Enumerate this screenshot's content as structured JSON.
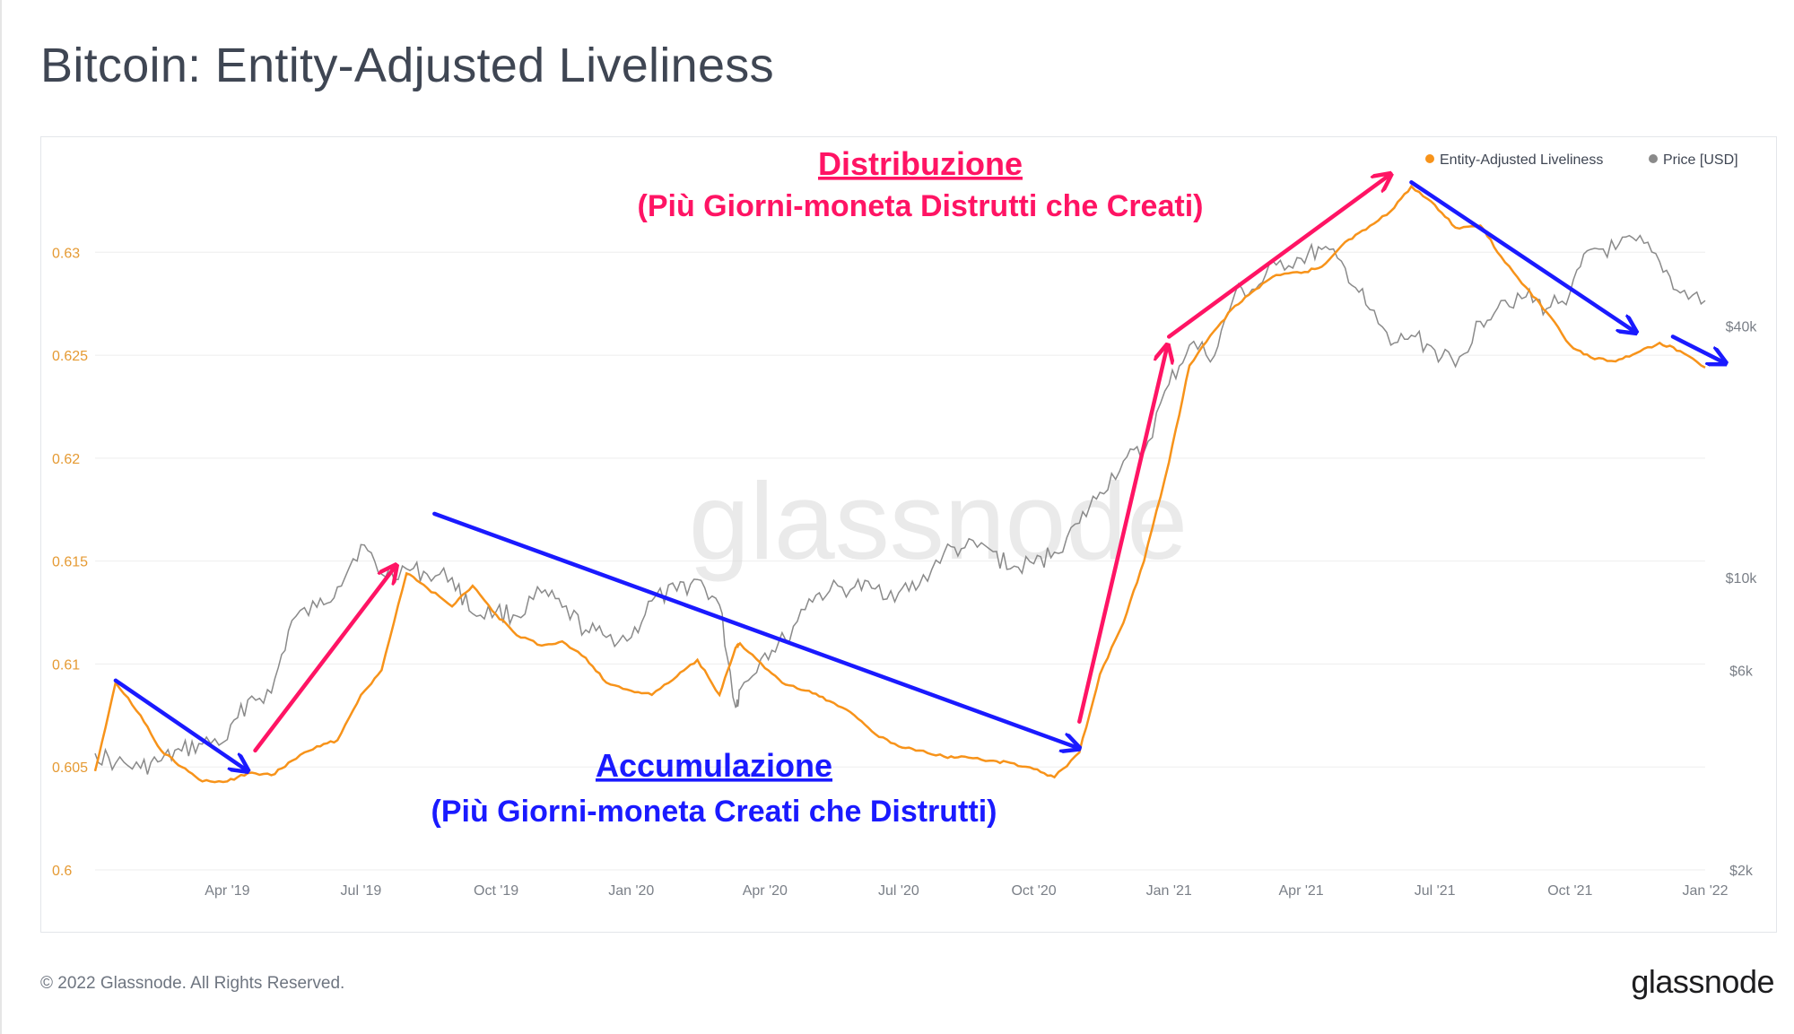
{
  "title": "Bitcoin: Entity-Adjusted Liveliness",
  "footer": "© 2022 Glassnode. All Rights Reserved.",
  "brand": "glassnode",
  "watermark": "glassnode",
  "colors": {
    "liveliness": "#f7931a",
    "price": "#8a8a8a",
    "accumulation": "#1a1aff",
    "distribution": "#ff1464",
    "axis_text": "#7a7f87",
    "left_axis_text": "#e59a33",
    "grid": "#eeeeee"
  },
  "chart_data": {
    "type": "line",
    "title": "Bitcoin: Entity-Adjusted Liveliness",
    "x": [
      "2019-01-01",
      "2019-01-15",
      "2019-02-01",
      "2019-02-15",
      "2019-03-01",
      "2019-03-15",
      "2019-04-01",
      "2019-04-15",
      "2019-05-01",
      "2019-05-15",
      "2019-06-01",
      "2019-06-15",
      "2019-07-01",
      "2019-07-15",
      "2019-08-01",
      "2019-08-15",
      "2019-09-01",
      "2019-09-15",
      "2019-10-01",
      "2019-10-15",
      "2019-11-01",
      "2019-11-15",
      "2019-12-01",
      "2019-12-15",
      "2020-01-01",
      "2020-01-15",
      "2020-02-01",
      "2020-02-15",
      "2020-03-01",
      "2020-03-12",
      "2020-03-15",
      "2020-04-01",
      "2020-04-15",
      "2020-05-01",
      "2020-05-15",
      "2020-06-01",
      "2020-06-15",
      "2020-07-01",
      "2020-07-15",
      "2020-08-01",
      "2020-08-15",
      "2020-09-01",
      "2020-09-15",
      "2020-10-01",
      "2020-10-15",
      "2020-11-01",
      "2020-11-15",
      "2020-12-01",
      "2020-12-15",
      "2021-01-01",
      "2021-01-15",
      "2021-02-01",
      "2021-02-15",
      "2021-03-01",
      "2021-03-15",
      "2021-04-01",
      "2021-04-15",
      "2021-05-01",
      "2021-05-15",
      "2021-06-01",
      "2021-06-15",
      "2021-07-01",
      "2021-07-15",
      "2021-08-01",
      "2021-08-15",
      "2021-09-01",
      "2021-09-15",
      "2021-10-01",
      "2021-10-15",
      "2021-11-01",
      "2021-11-15",
      "2021-12-01",
      "2021-12-15",
      "2022-01-01"
    ],
    "series": [
      {
        "name": "Entity-Adjusted Liveliness",
        "axis": "left",
        "color": "#f7931a",
        "values": [
          0.6048,
          0.6091,
          0.6075,
          0.6058,
          0.605,
          0.6043,
          0.6043,
          0.6047,
          0.6046,
          0.6053,
          0.606,
          0.6063,
          0.6085,
          0.6097,
          0.6144,
          0.6137,
          0.6128,
          0.6138,
          0.6124,
          0.6114,
          0.6109,
          0.6111,
          0.6103,
          0.6091,
          0.6087,
          0.6085,
          0.6094,
          0.6102,
          0.6085,
          0.6108,
          0.611,
          0.6098,
          0.609,
          0.6087,
          0.6082,
          0.6075,
          0.6066,
          0.606,
          0.6058,
          0.6055,
          0.6055,
          0.6053,
          0.6052,
          0.6049,
          0.6045,
          0.6057,
          0.6095,
          0.612,
          0.615,
          0.6198,
          0.6245,
          0.6262,
          0.6274,
          0.6282,
          0.6289,
          0.629,
          0.6293,
          0.6305,
          0.6311,
          0.632,
          0.6332,
          0.6323,
          0.6312,
          0.6313,
          0.6298,
          0.6283,
          0.6271,
          0.6255,
          0.6249,
          0.6247,
          0.6251,
          0.6256,
          0.6252,
          0.6244
        ]
      },
      {
        "name": "Price [USD]",
        "axis": "right",
        "color": "#8a8a8a",
        "values": [
          3800,
          3600,
          3500,
          3650,
          3850,
          4000,
          4100,
          5100,
          5300,
          7900,
          8500,
          9500,
          12000,
          10200,
          10500,
          10200,
          10000,
          8200,
          8300,
          8100,
          9200,
          8500,
          7500,
          7200,
          7200,
          8800,
          9300,
          9900,
          8600,
          4900,
          5400,
          6600,
          7100,
          8900,
          9300,
          9500,
          9400,
          9200,
          9600,
          11500,
          11800,
          11700,
          10500,
          10800,
          11500,
          13500,
          16000,
          19000,
          20000,
          29000,
          36000,
          34000,
          48000,
          49000,
          56000,
          58000,
          61000,
          55000,
          45000,
          36000,
          38000,
          35000,
          32000,
          41000,
          46000,
          47000,
          44000,
          48000,
          61000,
          61000,
          64000,
          57000,
          48000,
          46000
        ]
      }
    ],
    "y_left": {
      "ticks": [
        0.6,
        0.605,
        0.61,
        0.615,
        0.62,
        0.625,
        0.63
      ],
      "tick_labels": [
        "0.6",
        "0.605",
        "0.61",
        "0.615",
        "0.62",
        "0.625",
        "0.63"
      ],
      "range": [
        0.6,
        0.6345
      ]
    },
    "y_right": {
      "scale": "log",
      "ticks": [
        2000,
        6000,
        10000,
        40000
      ],
      "tick_labels": [
        "$2k",
        "$6k",
        "$10k",
        "$40k"
      ]
    },
    "x_ticks": [
      {
        "date": "2019-04-01",
        "label": "Apr '19"
      },
      {
        "date": "2019-07-01",
        "label": "Jul '19"
      },
      {
        "date": "2019-10-01",
        "label": "Oct '19"
      },
      {
        "date": "2020-01-01",
        "label": "Jan '20"
      },
      {
        "date": "2020-04-01",
        "label": "Apr '20"
      },
      {
        "date": "2020-07-01",
        "label": "Jul '20"
      },
      {
        "date": "2020-10-01",
        "label": "Oct '20"
      },
      {
        "date": "2021-01-01",
        "label": "Jan '21"
      },
      {
        "date": "2021-04-01",
        "label": "Apr '21"
      },
      {
        "date": "2021-07-01",
        "label": "Jul '21"
      },
      {
        "date": "2021-10-01",
        "label": "Oct '21"
      },
      {
        "date": "2022-01-01",
        "label": "Jan '22"
      }
    ],
    "legend": {
      "placement": "top-right",
      "entries": [
        "Entity-Adjusted Liveliness",
        "Price [USD]"
      ]
    },
    "annotations": [
      {
        "kind": "distribution",
        "heading": "Distribuzione",
        "subtitle": "(Più Giorni-moneta Distrutti che Creati)"
      },
      {
        "kind": "accumulation",
        "heading": "Accumulazione",
        "subtitle": "(Più Giorni-moneta Creati che Distrutti)"
      }
    ],
    "arrows": [
      {
        "color": "accumulation",
        "from": {
          "date": "2019-01-15",
          "value": 0.6092
        },
        "to": {
          "date": "2019-04-15",
          "value": 0.6048
        }
      },
      {
        "color": "distribution",
        "from": {
          "date": "2019-04-20",
          "value": 0.6058
        },
        "to": {
          "date": "2019-07-25",
          "value": 0.6148
        }
      },
      {
        "color": "accumulation",
        "from": {
          "date": "2019-08-20",
          "value": 0.6173
        },
        "to": {
          "date": "2020-11-01",
          "value": 0.6059
        }
      },
      {
        "color": "distribution",
        "from": {
          "date": "2020-11-01",
          "value": 0.6072
        },
        "to": {
          "date": "2020-12-31",
          "value": 0.6255
        }
      },
      {
        "color": "distribution",
        "from": {
          "date": "2021-01-01",
          "value": 0.6259
        },
        "to": {
          "date": "2021-06-01",
          "value": 0.6338
        }
      },
      {
        "color": "accumulation",
        "from": {
          "date": "2021-06-15",
          "value": 0.6334
        },
        "to": {
          "date": "2021-11-15",
          "value": 0.6261
        }
      },
      {
        "color": "accumulation",
        "from": {
          "date": "2021-12-10",
          "value": 0.6259
        },
        "to": {
          "date": "2022-01-15",
          "value": 0.6246
        }
      }
    ]
  }
}
